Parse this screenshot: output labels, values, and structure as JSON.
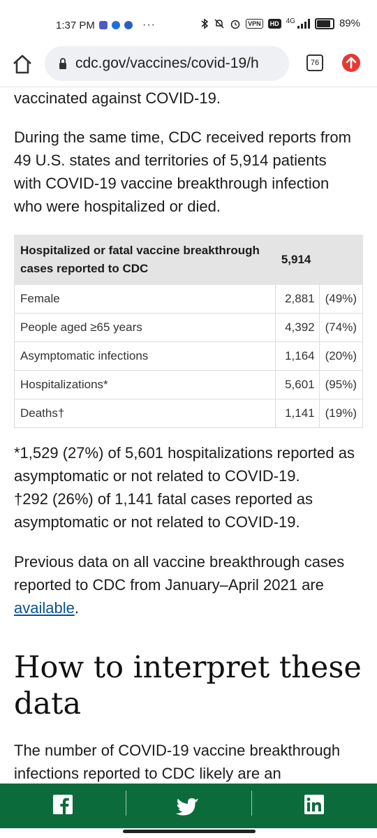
{
  "status_bar": {
    "time": "1:37 PM",
    "more": "···",
    "vpn": "VPN",
    "hd": "HD",
    "network": "4G",
    "battery_pct": "89%"
  },
  "browser": {
    "url": "cdc.gov/vaccines/covid-19/h",
    "tab_count": "76"
  },
  "article": {
    "p0": "vaccinated against COVID-19.",
    "p1": "During the same time, CDC received reports from 49 U.S. states and territories of 5,914 patients with COVID-19 vaccine breakthrough infection who were hospitalized or died.",
    "table": {
      "header_label": "Hospitalized or fatal vaccine breakthrough cases reported to CDC",
      "header_value": "5,914",
      "rows": [
        {
          "label": "Female",
          "count": "2,881",
          "pct": "(49%)"
        },
        {
          "label": "People aged ≥65 years",
          "count": "4,392",
          "pct": "(74%)"
        },
        {
          "label": "Asymptomatic infections",
          "count": "1,164",
          "pct": "(20%)"
        },
        {
          "label": "Hospitalizations*",
          "count": "5,601",
          "pct": "(95%)"
        },
        {
          "label": "Deaths†",
          "count": "1,141",
          "pct": "(19%)"
        }
      ]
    },
    "note1": "*1,529 (27%) of 5,601 hospitalizations reported as asymptomatic or not related to COVID-19.",
    "note2": "†292 (26%) of 1,141 fatal cases reported as asymptomatic or not related to COVID-19.",
    "prev_text": "Previous data on all vaccine breakthrough cases reported to CDC from January–April 2021 are",
    "prev_link": "available",
    "prev_end": ".",
    "heading": "How to interpret these data",
    "p_last": "The number of COVID-19 vaccine breakthrough infections reported to CDC likely are an"
  },
  "colors": {
    "share_bar": "#0c6b3a",
    "link": "#075290",
    "table_header": "#e4e4e4",
    "update_badge": "#e53935"
  },
  "icons": {
    "home": "home-icon",
    "lock": "lock-icon",
    "update": "arrow-up-icon",
    "facebook": "facebook-icon",
    "twitter": "twitter-icon",
    "linkedin": "linkedin-icon"
  }
}
